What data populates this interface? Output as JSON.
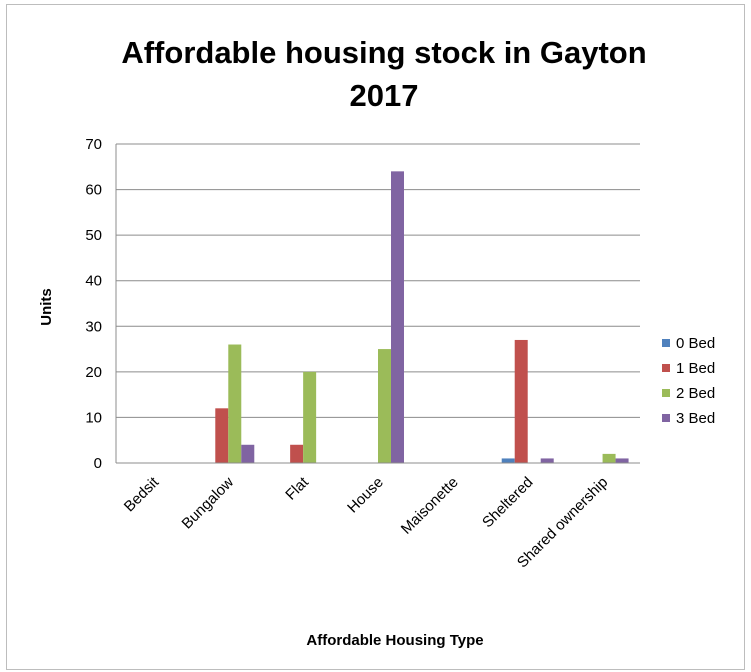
{
  "chart_data": {
    "type": "bar",
    "title_line1": "Affordable housing stock in Gayton",
    "title_line2": "2017",
    "xlabel": "Affordable Housing Type",
    "ylabel": "Units",
    "ylim": [
      0,
      70
    ],
    "yticks": [
      "0",
      "10",
      "20",
      "30",
      "40",
      "50",
      "60",
      "70"
    ],
    "grid": true,
    "legend_position": "right",
    "categories": [
      "Bedsit",
      "Bungalow",
      "Flat",
      "House",
      "Maisonette",
      "Sheltered",
      "Shared ownership"
    ],
    "series": [
      {
        "name": "0 Bed",
        "color": "#4f81bd",
        "values": [
          0,
          0,
          0,
          0,
          0,
          1,
          0
        ]
      },
      {
        "name": "1 Bed",
        "color": "#c0504d",
        "values": [
          0,
          12,
          4,
          0,
          0,
          27,
          0
        ]
      },
      {
        "name": "2 Bed",
        "color": "#9bbb59",
        "values": [
          0,
          26,
          20,
          25,
          0,
          0,
          2
        ]
      },
      {
        "name": "3 Bed",
        "color": "#8064a2",
        "values": [
          0,
          4,
          0,
          64,
          0,
          1,
          1
        ]
      }
    ]
  }
}
